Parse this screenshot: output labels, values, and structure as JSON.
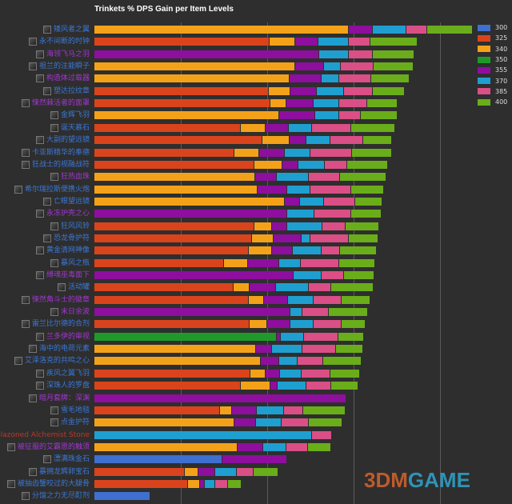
{
  "chart_data": {
    "type": "bar",
    "orientation": "horizontal",
    "stacked": true,
    "title": "Trinkets % DPS Gain per Item Levels",
    "xlabel": "",
    "ylabel": "",
    "xlim": [
      0,
      4.45
    ],
    "grid": true,
    "legend_position": "right",
    "levels": [
      "300",
      "325",
      "340",
      "350",
      "355",
      "370",
      "385",
      "400"
    ],
    "level_colors": {
      "300": "#3f6fcf",
      "325": "#d9441c",
      "340": "#f4a11a",
      "350": "#1f9a2a",
      "355": "#8e0e9e",
      "370": "#1f9fd0",
      "385": "#d94f86",
      "400": "#6aad1a"
    },
    "items": [
      {
        "label": "矮风者之翼",
        "label_color": "#3a78d8",
        "values": {
          "340": 2.94,
          "355": 3.22,
          "370": 3.61,
          "385": 3.85,
          "400": 4.38
        }
      },
      {
        "label": "永不间断的时钟",
        "label_color": "#3a78d8",
        "values": {
          "325": 2.03,
          "340": 2.32,
          "355": 2.59,
          "370": 2.94,
          "385": 3.19,
          "400": 3.74
        }
      },
      {
        "label": "海领飞马之羽",
        "label_color": "#a236d0",
        "values": {
          "355": 2.6,
          "370": 2.94,
          "385": 3.22,
          "400": 3.7
        }
      },
      {
        "label": "祖兰的注能瞬子",
        "label_color": "#3a78d8",
        "values": {
          "340": 2.32,
          "355": 2.66,
          "370": 2.85,
          "385": 3.23,
          "400": 3.69
        }
      },
      {
        "label": "构造体过载器",
        "label_color": "#a236d0",
        "values": {
          "340": 2.26,
          "355": 2.63,
          "370": 2.83,
          "385": 3.2,
          "400": 3.65
        }
      },
      {
        "label": "塑达拉纹章",
        "label_color": "#3a78d8",
        "values": {
          "325": 2.02,
          "340": 2.27,
          "355": 2.57,
          "370": 2.89,
          "385": 3.22,
          "400": 3.59
        }
      },
      {
        "label": "悚然棘活者的面罩",
        "label_color": "#a236d0",
        "values": {
          "325": 2.04,
          "340": 2.22,
          "355": 2.54,
          "370": 2.83,
          "385": 3.16,
          "400": 3.51
        }
      },
      {
        "label": "金辉飞羽",
        "label_color": "#3a78d8",
        "values": {
          "340": 2.14,
          "355": 2.56,
          "370": 2.83,
          "385": 3.08,
          "400": 3.51
        }
      },
      {
        "label": "诞天慕石",
        "label_color": "#3a78d8",
        "values": {
          "325": 1.69,
          "340": 1.98,
          "355": 2.25,
          "370": 2.52,
          "385": 2.97,
          "400": 3.48
        }
      },
      {
        "label": "大副的望远镜",
        "label_color": "#3a78d8",
        "values": {
          "325": 1.94,
          "340": 2.26,
          "355": 2.45,
          "370": 2.73,
          "385": 3.11,
          "400": 3.44
        }
      },
      {
        "label": "卡亚斯精华的奉德",
        "label_color": "#3a78d8",
        "values": {
          "325": 1.62,
          "340": 1.91,
          "355": 2.2,
          "370": 2.5,
          "385": 2.98,
          "400": 3.44
        }
      },
      {
        "label": "狂战士的视融战符",
        "label_color": "#3a78d8",
        "values": {
          "325": 1.85,
          "340": 2.18,
          "355": 2.36,
          "370": 2.67,
          "385": 2.93,
          "400": 3.4
        }
      },
      {
        "label": "狂热血珠",
        "label_color": "#a236d0",
        "values": {
          "340": 1.86,
          "355": 2.11,
          "370": 2.48,
          "385": 2.84,
          "400": 3.38
        }
      },
      {
        "label": "希尔瑞拉斯便携火炮",
        "label_color": "#3a78d8",
        "values": {
          "340": 1.89,
          "355": 2.23,
          "370": 2.5,
          "385": 2.97,
          "400": 3.35
        }
      },
      {
        "label": "亡眼望远镜",
        "label_color": "#3a78d8",
        "values": {
          "340": 2.2,
          "355": 2.38,
          "370": 2.66,
          "385": 3.02,
          "400": 3.33
        }
      },
      {
        "label": "永冻护壳之心",
        "label_color": "#a236d0",
        "values": {
          "355": 2.23,
          "370": 2.55,
          "385": 2.97,
          "400": 3.32
        }
      },
      {
        "label": "狂风风铃",
        "label_color": "#3a78d8",
        "values": {
          "325": 1.85,
          "340": 2.06,
          "355": 2.23,
          "370": 2.64,
          "385": 2.91,
          "400": 3.3
        }
      },
      {
        "label": "恐龙骨护符",
        "label_color": "#3a78d8",
        "values": {
          "325": 1.82,
          "340": 2.07,
          "355": 2.4,
          "370": 2.5,
          "385": 2.94,
          "400": 3.29
        }
      },
      {
        "label": "黄金清网神像",
        "label_color": "#3a78d8",
        "values": {
          "325": 1.79,
          "340": 2.06,
          "355": 2.3,
          "370": 2.63,
          "385": 2.84,
          "400": 3.27
        }
      },
      {
        "label": "暴风之瓶",
        "label_color": "#3a78d8",
        "values": {
          "325": 1.5,
          "340": 1.78,
          "355": 2.14,
          "370": 2.39,
          "385": 2.83,
          "400": 3.25
        }
      },
      {
        "label": "缚魂巫毒面下",
        "label_color": "#a236d0",
        "values": {
          "355": 2.31,
          "370": 2.63,
          "385": 2.89,
          "400": 3.24
        }
      },
      {
        "label": "活动罐",
        "label_color": "#3a78d8",
        "values": {
          "325": 1.61,
          "340": 1.8,
          "355": 2.1,
          "370": 2.48,
          "385": 2.74,
          "400": 3.23
        }
      },
      {
        "label": "悚然角斗士的徽章",
        "label_color": "#a236d0",
        "values": {
          "325": 1.79,
          "340": 1.96,
          "355": 2.24,
          "370": 2.54,
          "385": 2.86,
          "400": 3.19
        }
      },
      {
        "label": "末日余波",
        "label_color": "#a236d0",
        "values": {
          "355": 2.27,
          "370": 2.41,
          "385": 2.71,
          "400": 3.17
        }
      },
      {
        "label": "雷兰比尔德的合剂",
        "label_color": "#3a78d8",
        "values": {
          "325": 1.8,
          "340": 2.0,
          "355": 2.27,
          "370": 2.54,
          "385": 2.86,
          "400": 3.14
        }
      },
      {
        "label": "兰多伊的审视",
        "label_color": "#a236d0",
        "values": {
          "350": 2.11,
          "355": 2.16,
          "370": 2.43,
          "385": 2.82,
          "400": 3.12
        }
      },
      {
        "label": "海中的电荷元素",
        "label_color": "#3a78d8",
        "values": {
          "340": 1.87,
          "355": 2.06,
          "370": 2.41,
          "385": 2.8,
          "400": 3.11
        }
      },
      {
        "label": "艾泽洛克的共鸣之心",
        "label_color": "#3a78d8",
        "values": {
          "340": 1.93,
          "355": 2.14,
          "370": 2.35,
          "385": 2.65,
          "400": 3.09
        }
      },
      {
        "label": "疾风之翼飞羽",
        "label_color": "#3a78d8",
        "values": {
          "325": 1.81,
          "340": 1.98,
          "355": 2.15,
          "370": 2.4,
          "385": 2.73,
          "400": 3.07
        }
      },
      {
        "label": "深珠人的罗盘",
        "label_color": "#3a78d8",
        "values": {
          "325": 1.69,
          "340": 2.04,
          "355": 2.12,
          "370": 2.45,
          "385": 2.74,
          "400": 3.06
        }
      },
      {
        "label": "暗月套牌：深渊",
        "label_color": "#a236d0",
        "values": {
          "355": 2.92
        }
      },
      {
        "label": "雪毛地毯",
        "label_color": "#3a78d8",
        "values": {
          "325": 1.45,
          "340": 1.59,
          "355": 1.88,
          "370": 2.19,
          "385": 2.42,
          "400": 2.91
        }
      },
      {
        "label": "点金护符",
        "label_color": "#3a78d8",
        "values": {
          "340": 1.62,
          "355": 1.87,
          "370": 2.17,
          "385": 2.48,
          "400": 2.87
        }
      },
      {
        "label": "Emblazoned Alchemist Stone",
        "label_color": "#b8392a",
        "values": {
          "370": 2.52,
          "385": 2.75
        }
      },
      {
        "label": "被征服的艾霸恩的触须",
        "label_color": "#a236d0",
        "values": {
          "340": 1.66,
          "355": 1.95,
          "370": 2.22,
          "385": 2.47,
          "400": 2.74
        }
      },
      {
        "label": "漂满珠金石",
        "label_color": "#3a78d8",
        "values": {
          "300": 1.48,
          "355": 2.23
        }
      },
      {
        "label": "暴拥龙鳄卵宝石",
        "label_color": "#3a78d8",
        "values": {
          "325": 1.05,
          "340": 1.2,
          "355": 1.4,
          "370": 1.65,
          "385": 1.84,
          "400": 2.13
        }
      },
      {
        "label": "被抽齿蟹咬过的大腿骨",
        "label_color": "#3a78d8",
        "values": {
          "325": 1.08,
          "340": 1.22,
          "355": 1.28,
          "370": 1.4,
          "385": 1.55,
          "400": 1.7
        }
      },
      {
        "label": "分馏之力无尽酊剂",
        "label_color": "#3a78d8",
        "values": {
          "300": 0.65
        }
      }
    ]
  },
  "watermark": {
    "logo_text_a": "3DM",
    "logo_text_b": "GAME"
  }
}
